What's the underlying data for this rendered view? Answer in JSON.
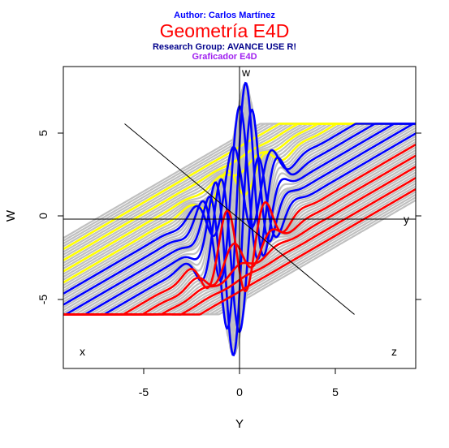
{
  "header": {
    "author": "Author: Carlos Martínez",
    "title": "Geometría E4D",
    "group": "Research Group: AVANCE USE R!",
    "subtitle": "Graficador E4D"
  },
  "chart_data": {
    "type": "line",
    "xlabel": "Y",
    "ylabel": "W",
    "xlim": [
      -9.2,
      9.2
    ],
    "ylim": [
      -9.4,
      9.6
    ],
    "xticks": [
      "-5",
      "0",
      "5"
    ],
    "yticks": [
      "-5",
      "0",
      "5"
    ],
    "axis_letters": {
      "w": "w",
      "y": "y",
      "x": "x",
      "z": "z"
    },
    "grid": false,
    "legend": "none",
    "colors": {
      "gray": "#c0c0c0",
      "yellow": "#ffff00",
      "blue": "#0000ff",
      "red": "#ff0000",
      "axis": "#000000"
    },
    "surface": {
      "sheet_level_low": -6.0,
      "sheet_level_high": 6.0,
      "ramp_slope": 0.7,
      "sheet_spacing": 1.0,
      "gaussian_amplitude_max": 8.8,
      "gaussian_frequency": 3.0,
      "gaussian_width": 0.9
    },
    "series": [
      {
        "color": "yellow",
        "offset": -6.5
      },
      {
        "color": "yellow",
        "offset": -5.5
      },
      {
        "color": "yellow",
        "offset": -4.5
      },
      {
        "color": "yellow",
        "offset": -3.5
      },
      {
        "color": "blue",
        "offset": -2.5
      },
      {
        "color": "blue",
        "offset": -1.5
      },
      {
        "color": "blue",
        "offset": -0.5
      },
      {
        "color": "blue",
        "offset": 0.5
      },
      {
        "color": "blue",
        "offset": 1.5
      },
      {
        "color": "red",
        "offset": 2.5
      },
      {
        "color": "red",
        "offset": 3.5
      },
      {
        "color": "red",
        "offset": 4.5
      },
      {
        "color": "red",
        "offset": 5.5
      },
      {
        "color": "red",
        "offset": 6.5
      }
    ]
  }
}
